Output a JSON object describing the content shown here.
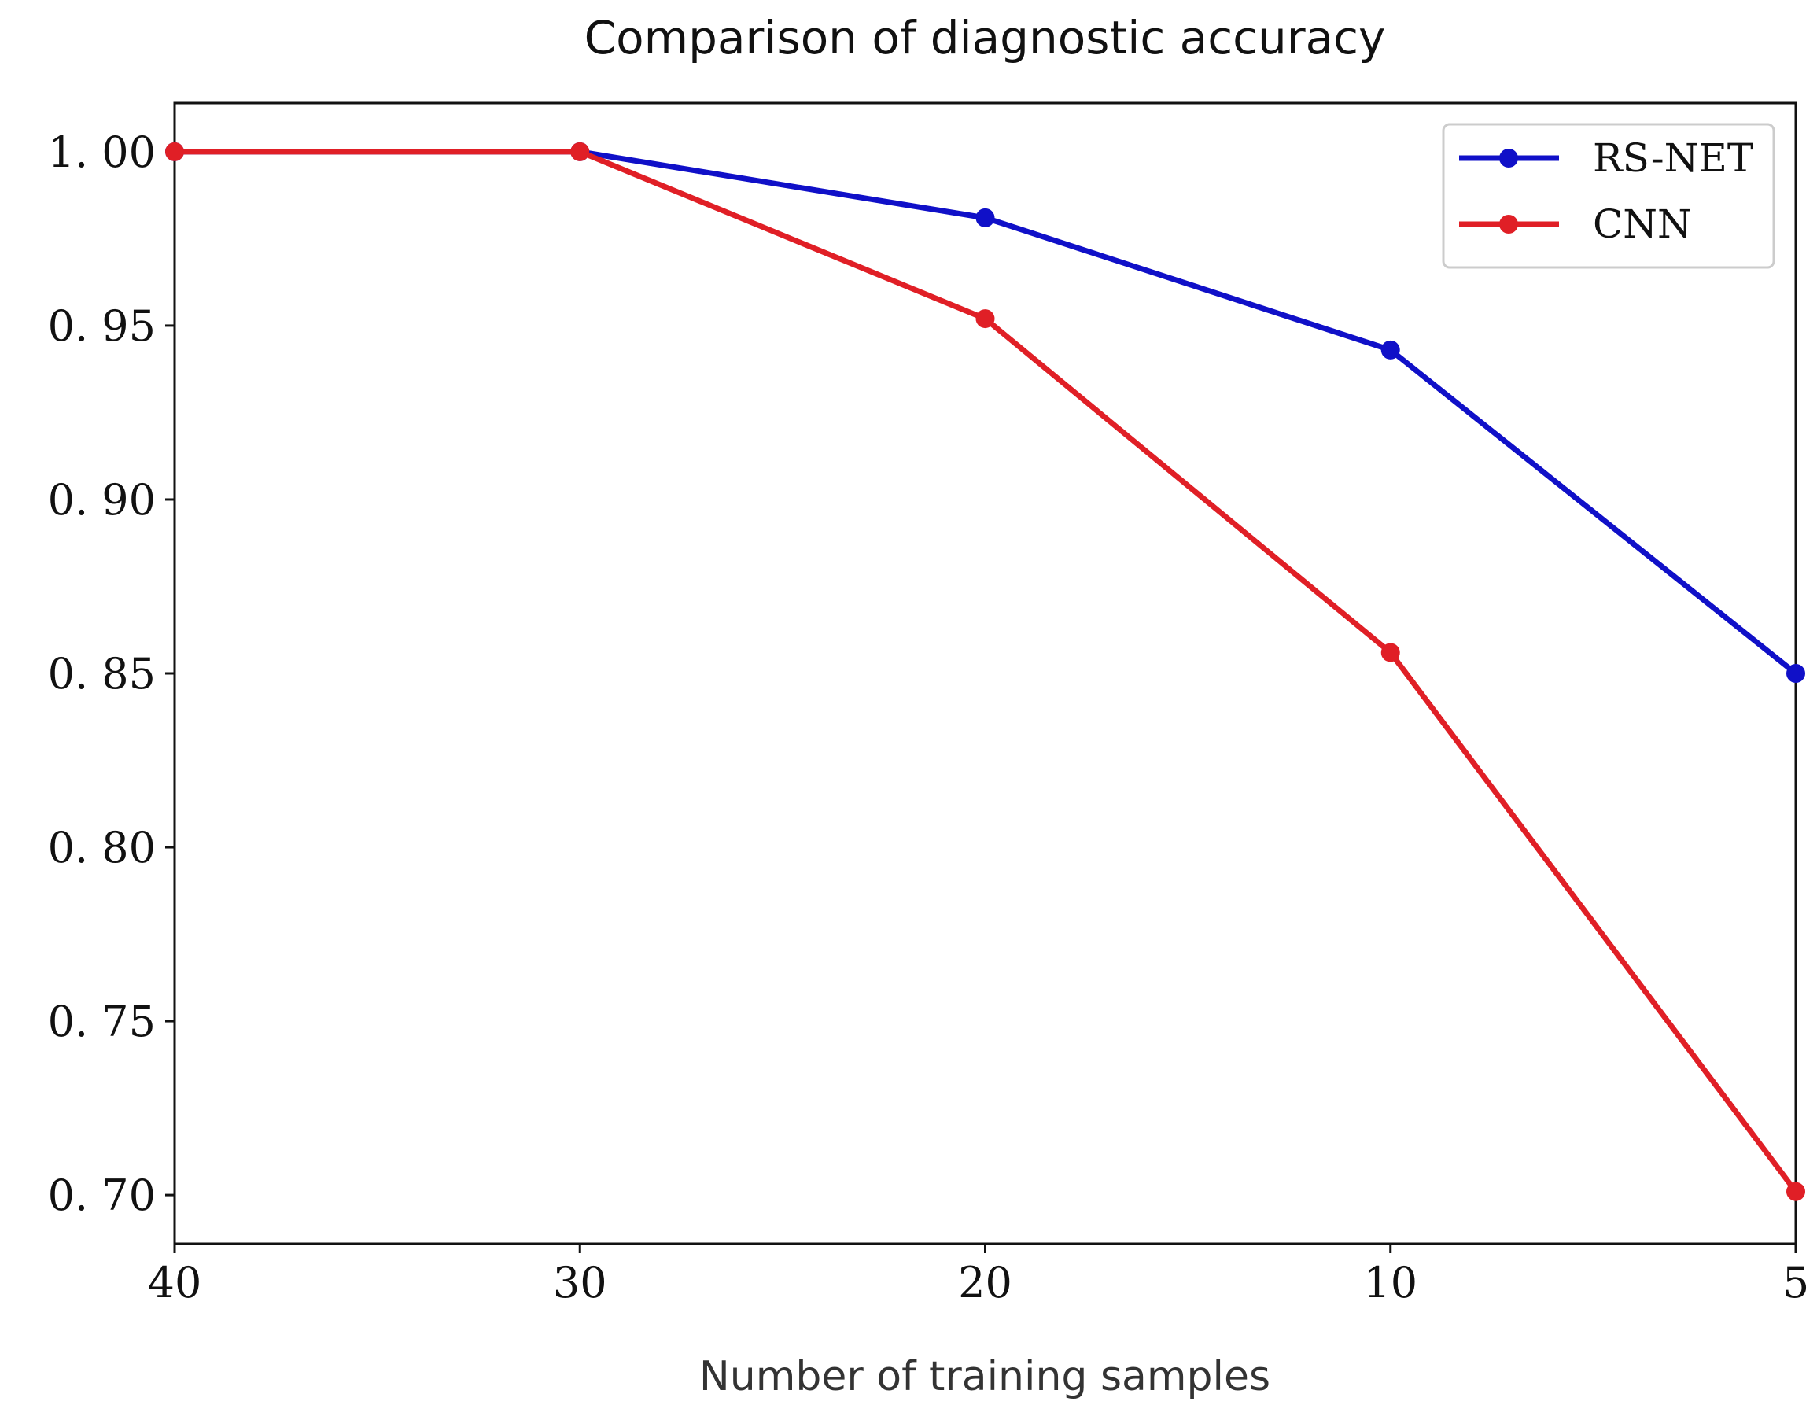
{
  "chart_data": {
    "type": "line",
    "title": "Comparison of diagnostic accuracy",
    "xlabel": "Number of training samples",
    "ylabel": "",
    "x": [
      "40",
      "30",
      "20",
      "10",
      "5"
    ],
    "x_tick_labels": [
      "40",
      "30",
      "20",
      "10",
      "5"
    ],
    "y_ticks": [
      1.0,
      0.95,
      0.9,
      0.85,
      0.8,
      0.75,
      0.7
    ],
    "y_tick_labels": [
      "1. 00",
      "0. 95",
      "0. 90",
      "0. 85",
      "0. 80",
      "0. 75",
      "0. 70"
    ],
    "ylim": [
      0.686,
      1.014
    ],
    "grid": false,
    "legend_position": "top-right",
    "series": [
      {
        "name": "RS-NET",
        "color": "#1010c8",
        "values": [
          1.0,
          1.0,
          0.981,
          0.943,
          0.85
        ]
      },
      {
        "name": "CNN",
        "color": "#e01f26",
        "values": [
          1.0,
          1.0,
          0.952,
          0.856,
          0.701
        ]
      }
    ]
  }
}
